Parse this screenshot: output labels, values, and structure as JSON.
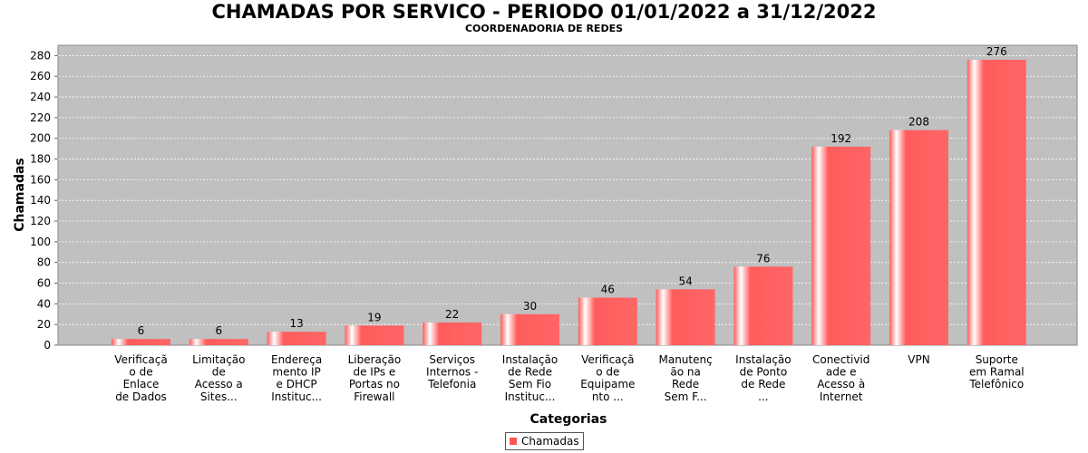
{
  "chart_data": {
    "type": "bar",
    "title": "CHAMADAS POR SERVICO - PERIODO 01/01/2022 a 31/12/2022",
    "subtitle": "COORDENADORIA DE REDES",
    "xlabel": "Categorias",
    "ylabel": "Chamadas",
    "ylim": [
      0,
      290
    ],
    "yticks": [
      0,
      20,
      40,
      60,
      80,
      100,
      120,
      140,
      160,
      180,
      200,
      220,
      240,
      260,
      280
    ],
    "grid": true,
    "legend_position": "bottom",
    "categories": [
      [
        "Verificaçã",
        "o de",
        "Enlace",
        "de Dados"
      ],
      [
        "Limitação",
        "de",
        "Acesso a",
        "Sites..."
      ],
      [
        "Endereça",
        "mento IP",
        "e DHCP",
        "Instituc..."
      ],
      [
        "Liberação",
        "de IPs e",
        "Portas no",
        "Firewall"
      ],
      [
        "Serviços",
        "Internos -",
        "Telefonia"
      ],
      [
        "Instalação",
        "de Rede",
        "Sem Fio",
        "Instituc..."
      ],
      [
        "Verificaçã",
        "o de",
        "Equipame",
        "nto ..."
      ],
      [
        "Manutenç",
        "ão na",
        "Rede",
        "Sem F..."
      ],
      [
        "Instalação",
        "de Ponto",
        "de Rede",
        "..."
      ],
      [
        "Conectivid",
        "ade e",
        "Acesso à",
        "Internet"
      ],
      [
        "VPN"
      ],
      [
        "Suporte",
        "em Ramal",
        "Telefônico"
      ]
    ],
    "series": [
      {
        "name": "Chamadas",
        "values": [
          6,
          6,
          13,
          19,
          22,
          30,
          46,
          54,
          76,
          192,
          208,
          276
        ]
      }
    ],
    "colors": {
      "bar": "#ff5c5c",
      "bar_highlight": "#ffffff",
      "plot_background": "#c0c0c0",
      "gridline": "#ffffff"
    }
  }
}
